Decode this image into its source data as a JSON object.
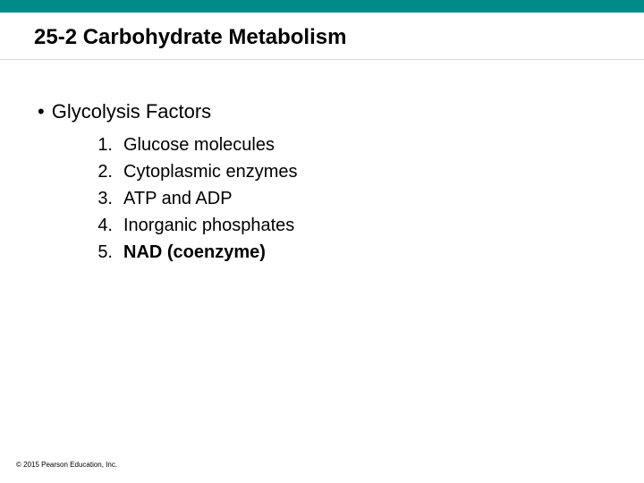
{
  "slide": {
    "top_bar_color": "#008b8b",
    "title": "25-2 Carbohydrate Metabolism",
    "bullet_text": "Glycolysis Factors",
    "items": [
      {
        "num": "1.",
        "text": "Glucose molecules",
        "bold": false
      },
      {
        "num": "2.",
        "text": "Cytoplasmic enzymes",
        "bold": false
      },
      {
        "num": "3.",
        "text": "ATP and ADP",
        "bold": false
      },
      {
        "num": "4.",
        "text": "Inorganic phosphates",
        "bold": false
      },
      {
        "num": "5.",
        "text": "NAD (coenzyme)",
        "bold": true
      }
    ],
    "copyright": "© 2015 Pearson Education, Inc."
  }
}
